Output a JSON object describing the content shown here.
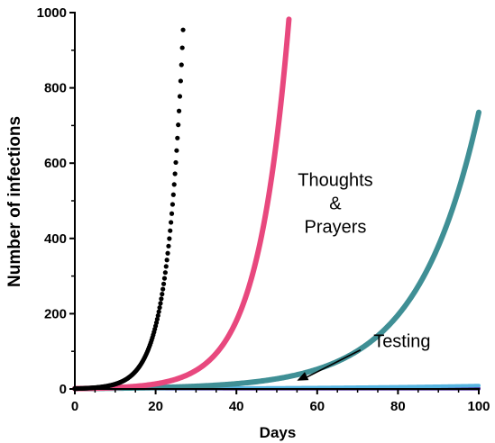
{
  "chart_data": {
    "type": "scatter",
    "xlabel": "Days",
    "ylabel": "Number of infections",
    "xlim": [
      0,
      100
    ],
    "ylim": [
      0,
      1000
    ],
    "xticks": [
      0,
      20,
      40,
      60,
      80,
      100
    ],
    "yticks": [
      0,
      200,
      400,
      600,
      800,
      1000
    ],
    "grid": false,
    "series": [
      {
        "style": "dotted",
        "color": "#000000",
        "start": 1,
        "rate": 0.256,
        "x_start": 0,
        "x_end": 27
      },
      {
        "style": "line",
        "color": "#e8487e",
        "start": 1,
        "rate": 0.13,
        "x_start": 0,
        "x_end": 53.2
      },
      {
        "style": "line",
        "color": "#3f8f95",
        "start": 1,
        "rate": 0.066,
        "x_start": 0,
        "x_end": 100
      },
      {
        "style": "line",
        "color": "#56b4e0",
        "start": 1,
        "rate": 0.022,
        "x_start": 0,
        "x_end": 100
      },
      {
        "style": "line",
        "color": "#4b2a9a",
        "start": 1,
        "rate": 0.0,
        "x_start": 0,
        "x_end": 100
      }
    ],
    "annotations": [
      {
        "lines": [
          "Thoughts",
          "&",
          "Prayers"
        ],
        "x": 64.5,
        "y": 540
      },
      {
        "lines": [
          "Testing"
        ],
        "x": 81,
        "y": 111,
        "arrow_to": [
          55,
          22
        ]
      }
    ]
  }
}
